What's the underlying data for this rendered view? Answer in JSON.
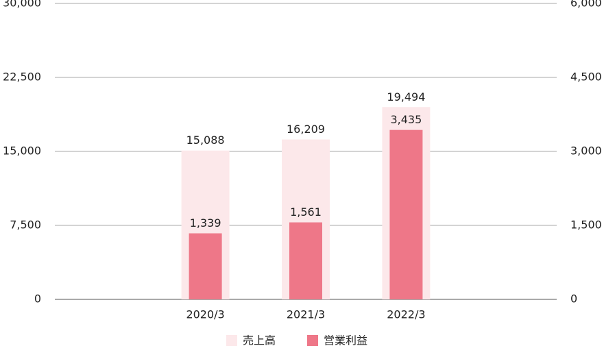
{
  "chart_data": {
    "type": "bar",
    "categories": [
      "2020/3",
      "2021/3",
      "2022/3"
    ],
    "series": [
      {
        "name": "売上高",
        "color": "#fce8ea",
        "values": [
          15088,
          16209,
          19494
        ],
        "value_labels": [
          "15,088",
          "16,209",
          "19,494"
        ]
      },
      {
        "name": "営業利益",
        "color": "#ee7788",
        "axis": "y2",
        "values": [
          1339,
          1561,
          3435
        ],
        "value_labels": [
          "1,339",
          "1,561",
          "3,435"
        ]
      }
    ],
    "ylim": [
      0,
      30000
    ],
    "yticks": [
      0,
      {
        "value": 7500,
        "label": "7,500"
      },
      {
        "value": 15000,
        "label": "15,000"
      },
      {
        "value": 22500,
        "label": "22,500"
      },
      {
        "value": 30000,
        "label": "30,000"
      }
    ],
    "y2lim": [
      0,
      6000
    ],
    "y2ticks": [
      0,
      {
        "value": 1500,
        "label": "1,500"
      },
      {
        "value": 3000,
        "label": "3,000"
      },
      {
        "value": 4500,
        "label": "4,500"
      },
      {
        "value": 6000,
        "label": "6,000"
      }
    ],
    "grid": true,
    "legend": "bottom"
  }
}
